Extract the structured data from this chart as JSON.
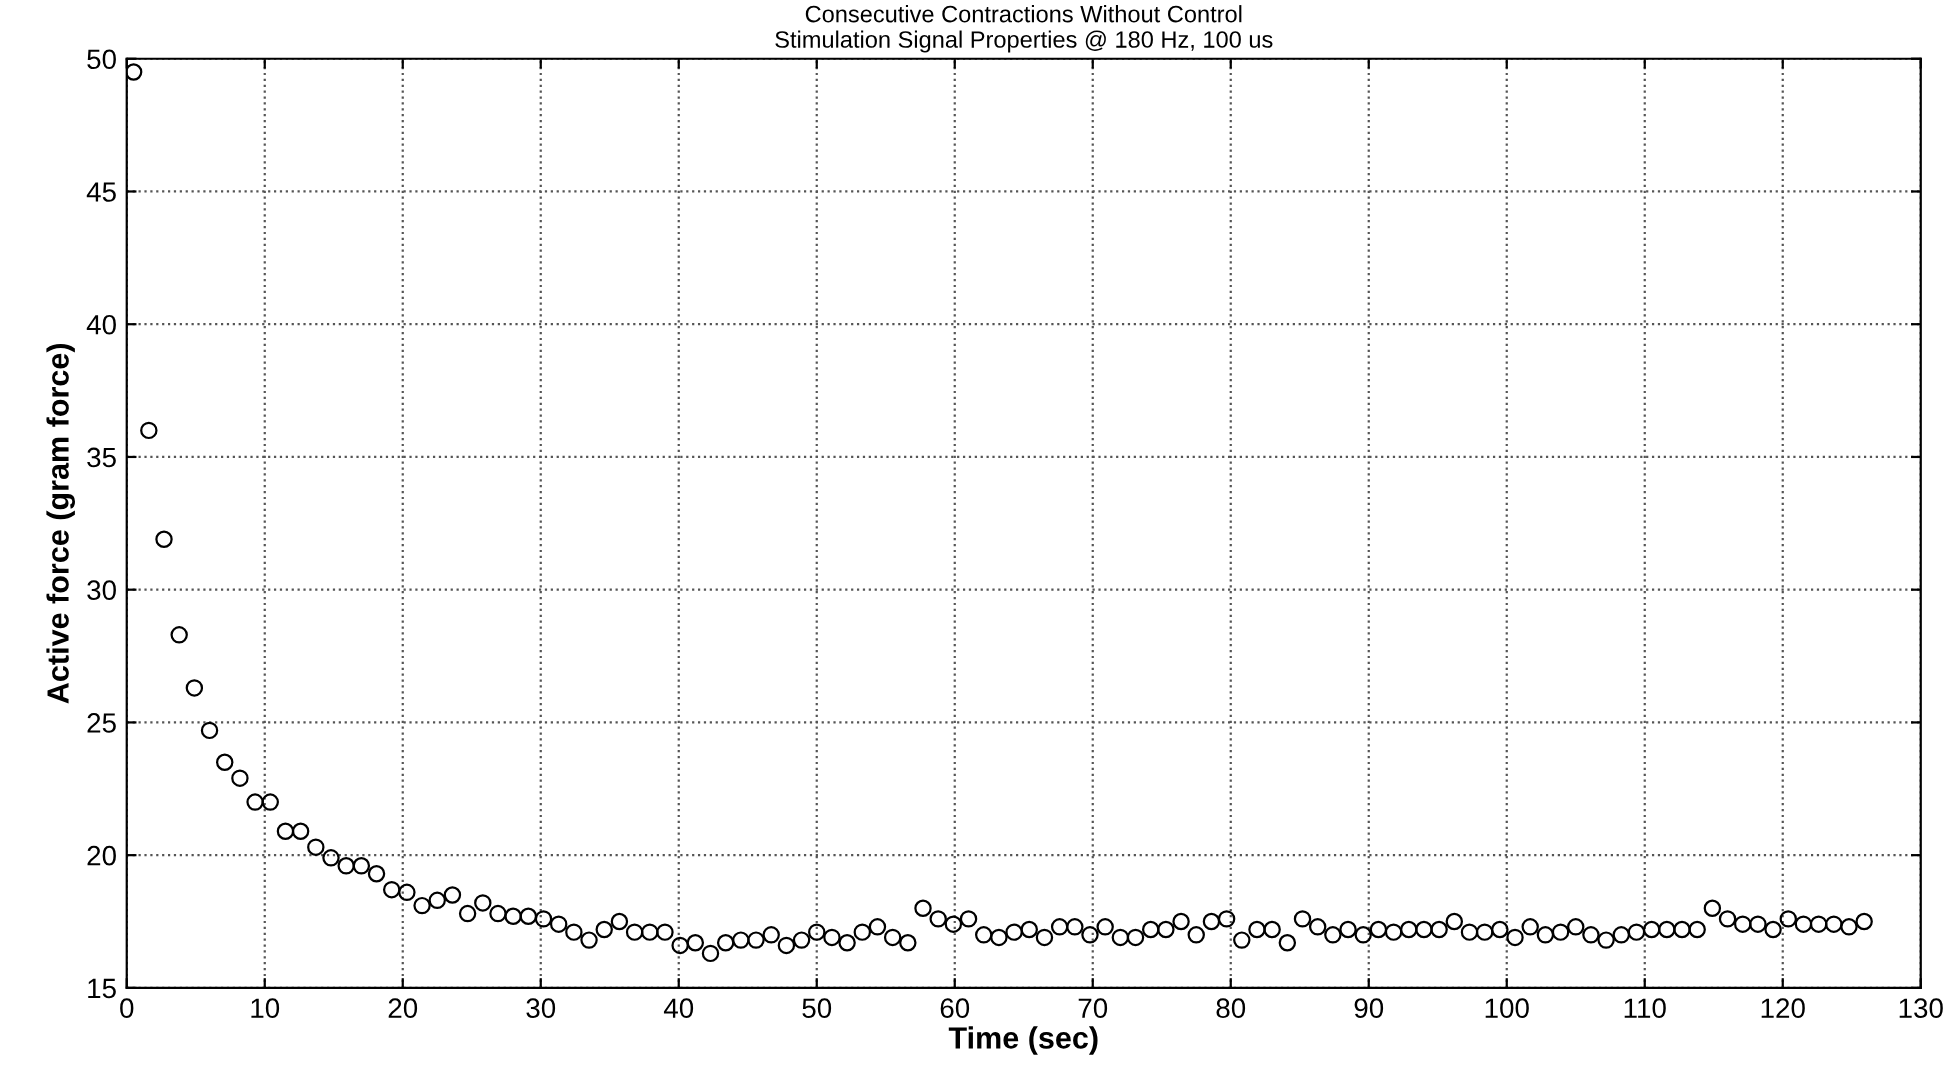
{
  "chart_data": {
    "type": "scatter",
    "title": "Consecutive Contractions Without Control",
    "subtitle": "Stimulation Signal Properties @ 180 Hz, 100 us",
    "xlabel": "Time (sec)",
    "ylabel": "Active force (gram force)",
    "x": [
      0.5,
      1.6,
      2.7,
      3.8,
      4.9,
      6,
      7.1,
      8.2,
      9.3,
      10.4,
      11.5,
      12.6,
      13.7,
      14.8,
      15.9,
      17,
      18.1,
      19.2,
      20.3,
      21.4,
      22.5,
      23.6,
      24.7,
      25.8,
      26.9,
      28,
      29.1,
      30.2,
      31.3,
      32.4,
      33.5,
      34.6,
      35.7,
      36.8,
      37.9,
      39,
      40.1,
      41.2,
      42.3,
      43.4,
      44.5,
      45.6,
      46.7,
      47.8,
      48.9,
      50,
      51.1,
      52.2,
      53.3,
      54.4,
      55.5,
      56.6,
      57.7,
      58.8,
      59.9,
      61,
      62.1,
      63.2,
      64.3,
      65.4,
      66.5,
      67.6,
      68.7,
      69.8,
      70.9,
      72,
      73.1,
      74.2,
      75.3,
      76.4,
      77.5,
      78.6,
      79.7,
      80.8,
      81.9,
      83,
      84.1,
      85.2,
      86.3,
      87.4,
      88.5,
      89.6,
      90.7,
      91.8,
      92.9,
      94,
      95.1,
      96.2,
      97.3,
      98.4,
      99.5,
      100.6,
      101.7,
      102.8,
      103.9,
      105,
      106.1,
      107.2,
      108.3,
      109.4,
      110.5,
      111.6,
      112.7,
      113.8,
      114.9,
      116,
      117.1,
      118.2,
      119.3,
      120.4,
      121.5,
      122.6,
      123.7,
      124.8,
      125.9
    ],
    "series": [
      {
        "color": "#000000",
        "values": [
          49.5,
          36,
          31.9,
          28.3,
          26.3,
          24.7,
          23.5,
          22.9,
          22,
          22,
          20.9,
          20.9,
          20.3,
          19.9,
          19.6,
          19.6,
          19.3,
          18.7,
          18.6,
          18.1,
          18.3,
          18.5,
          17.8,
          18.2,
          17.8,
          17.7,
          17.7,
          17.6,
          17.4,
          17.1,
          16.8,
          17.2,
          17.5,
          17.1,
          17.1,
          17.1,
          16.6,
          16.7,
          16.3,
          16.7,
          16.8,
          16.8,
          17.0,
          16.6,
          16.8,
          17.1,
          16.9,
          16.7,
          17.1,
          17.3,
          16.9,
          16.7,
          18.0,
          17.6,
          17.4,
          17.6,
          17.0,
          16.9,
          17.1,
          17.2,
          16.9,
          17.3,
          17.3,
          17.0,
          17.3,
          16.9,
          16.9,
          17.2,
          17.2,
          17.5,
          17.0,
          17.5,
          17.6,
          16.8,
          17.2,
          17.2,
          16.7,
          17.6,
          17.3,
          17.0,
          17.2,
          17.0,
          17.2,
          17.1,
          17.2,
          17.2,
          17.2,
          17.5,
          17.1,
          17.1,
          17.2,
          16.9,
          17.3,
          17.0,
          17.1,
          17.3,
          17.0,
          16.8,
          17.0,
          17.1,
          17.2,
          17.2,
          17.2,
          17.2,
          18.0,
          17.6,
          17.4,
          17.4,
          17.2,
          17.6,
          17.4,
          17.4,
          17.4,
          17.3,
          17.5
        ]
      }
    ],
    "xlim": [
      0,
      130
    ],
    "xticks": [
      0,
      10,
      20,
      30,
      40,
      50,
      60,
      70,
      80,
      90,
      100,
      110,
      120,
      130
    ],
    "ylim": [
      15,
      50
    ],
    "yticks": [
      15,
      20,
      25,
      30,
      35,
      40,
      45,
      50
    ],
    "grid": true,
    "marker": "circle",
    "legend": false
  }
}
